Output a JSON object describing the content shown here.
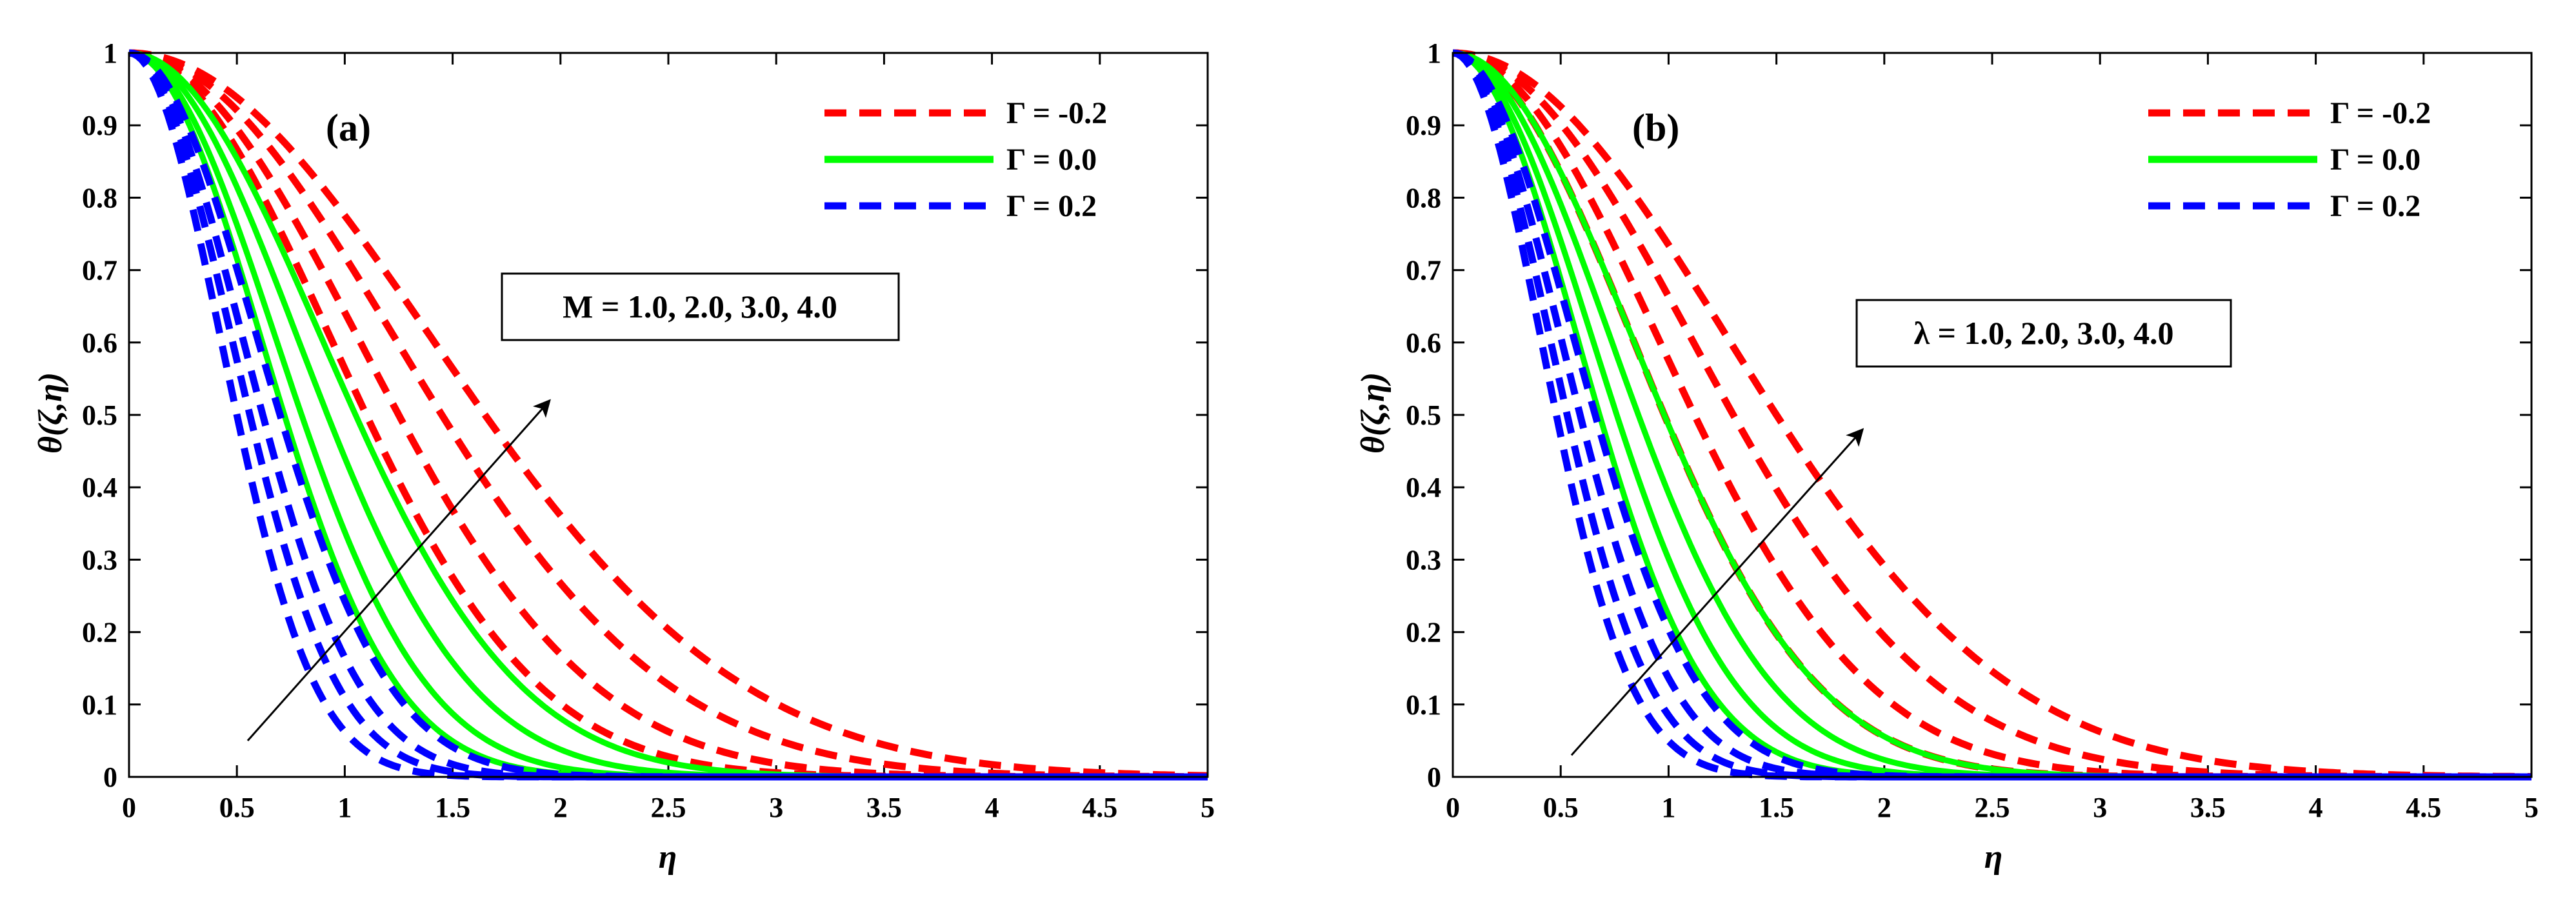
{
  "chart_data": [
    {
      "type": "line",
      "panel_label": "(a)",
      "xlabel": "η",
      "ylabel": "θ(ζ,η)",
      "xlim": [
        0,
        5
      ],
      "ylim": [
        0,
        1
      ],
      "x_ticks": [
        "0",
        "0.5",
        "1",
        "1.5",
        "2",
        "2.5",
        "3",
        "3.5",
        "4",
        "4.5",
        "5"
      ],
      "y_ticks": [
        "0",
        "0.1",
        "0.2",
        "0.3",
        "0.4",
        "0.5",
        "0.6",
        "0.7",
        "0.8",
        "0.9",
        "1"
      ],
      "legend": [
        {
          "label": "Γ = -0.2",
          "color": "#ff0000",
          "style": "dashed"
        },
        {
          "label": "Γ = 0.0",
          "color": "#00ff00",
          "style": "solid"
        },
        {
          "label": "Γ = 0.2",
          "color": "#0000ff",
          "style": "dashed"
        }
      ],
      "annotation": "M = 1.0, 2.0, 3.0, 4.0",
      "arrow": {
        "from": [
          0.55,
          0.05
        ],
        "to": [
          1.95,
          0.52
        ]
      },
      "series": [
        {
          "name": "Γ = -0.2",
          "color": "#ff0000",
          "dashed": true,
          "half_width": [
            1.65,
            1.45,
            1.25,
            1.1
          ]
        },
        {
          "name": "Γ = 0.0",
          "color": "#00ff00",
          "dashed": false,
          "half_width": [
            1.05,
            0.92,
            0.8,
            0.72
          ]
        },
        {
          "name": "Γ = 0.2",
          "color": "#0000ff",
          "dashed": true,
          "half_width": [
            0.7,
            0.62,
            0.56,
            0.5
          ]
        }
      ]
    },
    {
      "type": "line",
      "panel_label": "(b)",
      "xlabel": "η",
      "ylabel": "θ(ζ,η)",
      "xlim": [
        0,
        5
      ],
      "ylim": [
        0,
        1
      ],
      "x_ticks": [
        "0",
        "0.5",
        "1",
        "1.5",
        "2",
        "2.5",
        "3",
        "3.5",
        "4",
        "4.5",
        "5"
      ],
      "y_ticks": [
        "0",
        "0.1",
        "0.2",
        "0.3",
        "0.4",
        "0.5",
        "0.6",
        "0.7",
        "0.8",
        "0.9",
        "1"
      ],
      "legend": [
        {
          "label": "Γ = -0.2",
          "color": "#ff0000",
          "style": "dashed"
        },
        {
          "label": "Γ = 0.0",
          "color": "#00ff00",
          "style": "solid"
        },
        {
          "label": "Γ = 0.2",
          "color": "#0000ff",
          "style": "dashed"
        }
      ],
      "annotation": "λ = 1.0, 2.0, 3.0, 4.0",
      "arrow": {
        "from": [
          0.55,
          0.03
        ],
        "to": [
          1.9,
          0.48
        ]
      },
      "series": [
        {
          "name": "Γ = -0.2",
          "color": "#ff0000",
          "dashed": true,
          "half_width": [
            1.5,
            1.3,
            1.12,
            0.98
          ]
        },
        {
          "name": "Γ = 0.0",
          "color": "#00ff00",
          "dashed": false,
          "half_width": [
            0.98,
            0.86,
            0.76,
            0.68
          ]
        },
        {
          "name": "Γ = 0.2",
          "color": "#0000ff",
          "dashed": true,
          "half_width": [
            0.66,
            0.59,
            0.53,
            0.48
          ]
        }
      ]
    }
  ]
}
